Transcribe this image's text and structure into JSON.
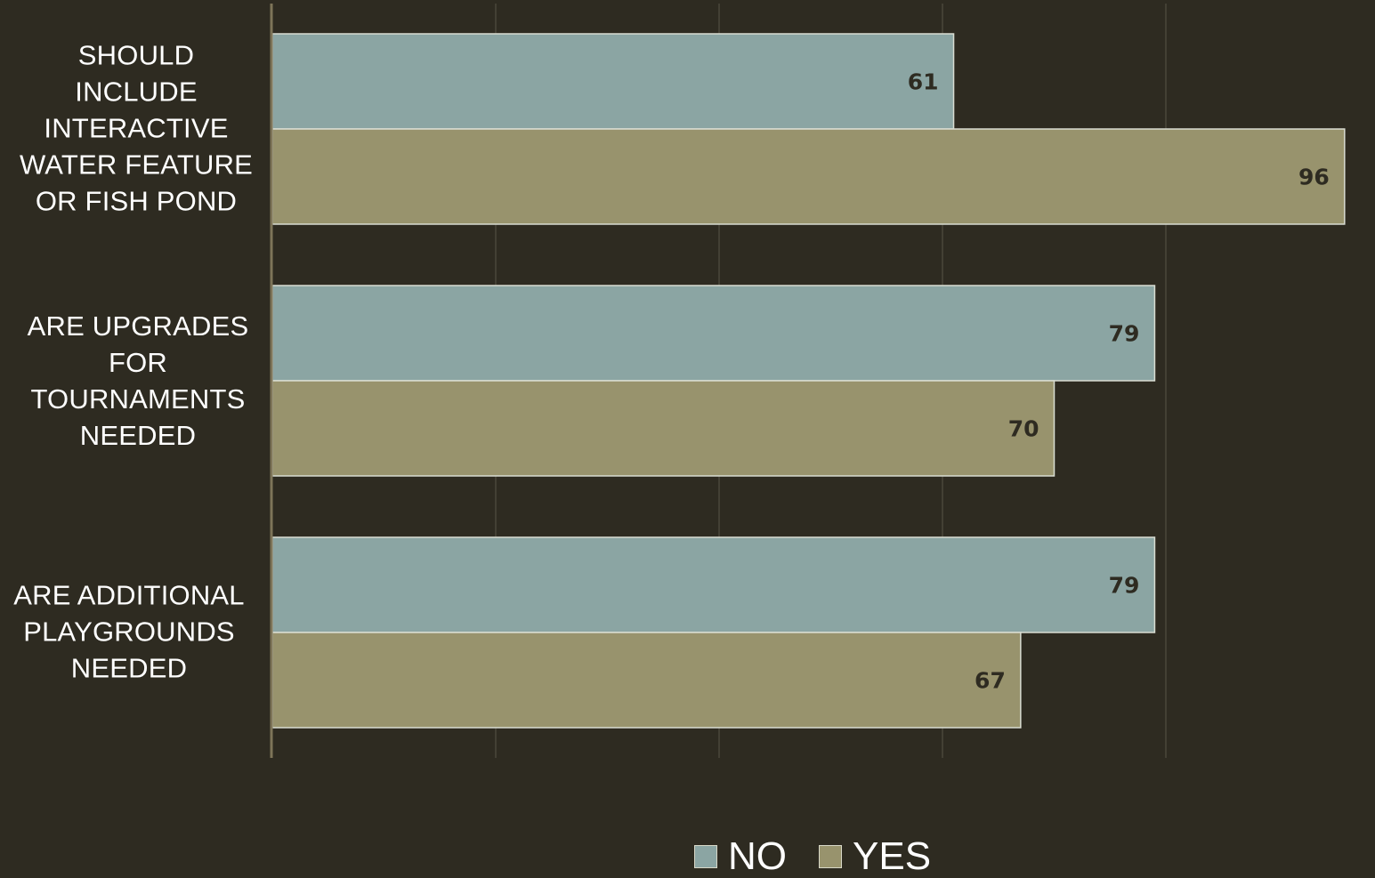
{
  "chart_data": {
    "type": "bar",
    "orientation": "horizontal",
    "categories": [
      "SHOULD INCLUDE INTERACTIVE WATER FEATURE OR FISH POND",
      "ARE UPGRADES FOR TOURNAMENTS NEEDED",
      "ARE ADDITIONAL PLAYGROUNDS NEEDED"
    ],
    "category_lines": [
      [
        "SHOULD",
        "INCLUDE",
        "INTERACTIVE",
        "WATER FEATURE",
        "OR FISH POND"
      ],
      [
        "ARE UPGRADES",
        "FOR",
        "TOURNAMENTS",
        "NEEDED"
      ],
      [
        "ARE ADDITIONAL",
        "PLAYGROUNDS",
        "NEEDED"
      ]
    ],
    "series": [
      {
        "name": "NO",
        "values": [
          61,
          79,
          79
        ],
        "color": "#8ba5a3"
      },
      {
        "name": "YES",
        "values": [
          96,
          70,
          67
        ],
        "color": "#98936d"
      }
    ],
    "xlim": [
      0,
      100
    ],
    "grid": true,
    "data_labels": true,
    "legend": "bottom-center"
  },
  "colors": {
    "background": "#2e2b21",
    "axis": "#7d7458",
    "grid": "#4a473b",
    "label_text": "#2e2b21",
    "text": "#ffffff"
  }
}
